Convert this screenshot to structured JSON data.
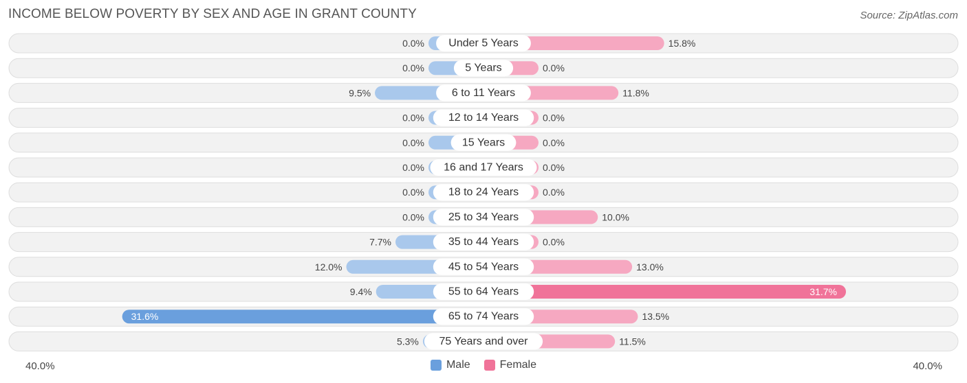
{
  "chart_data": {
    "type": "bar",
    "orientation": "horizontal-diverging",
    "title": "INCOME BELOW POVERTY BY SEX AND AGE IN GRANT COUNTY",
    "source": "Source: ZipAtlas.com",
    "categories": [
      "Under 5 Years",
      "5 Years",
      "6 to 11 Years",
      "12 to 14 Years",
      "15 Years",
      "16 and 17 Years",
      "18 to 24 Years",
      "25 to 34 Years",
      "35 to 44 Years",
      "45 to 54 Years",
      "55 to 64 Years",
      "65 to 74 Years",
      "75 Years and over"
    ],
    "series": [
      {
        "name": "Male",
        "color": "#6a9fdd",
        "values": [
          0.0,
          0.0,
          9.5,
          0.0,
          0.0,
          0.0,
          0.0,
          0.0,
          7.7,
          12.0,
          9.4,
          31.6,
          5.3
        ],
        "labels": [
          "0.0%",
          "0.0%",
          "9.5%",
          "0.0%",
          "0.0%",
          "0.0%",
          "0.0%",
          "0.0%",
          "7.7%",
          "12.0%",
          "9.4%",
          "31.6%",
          "5.3%"
        ]
      },
      {
        "name": "Female",
        "color": "#f07399",
        "values": [
          15.8,
          0.0,
          11.8,
          0.0,
          0.0,
          0.0,
          0.0,
          10.0,
          0.0,
          13.0,
          31.7,
          13.5,
          11.5
        ],
        "labels": [
          "15.8%",
          "0.0%",
          "11.8%",
          "0.0%",
          "0.0%",
          "0.0%",
          "0.0%",
          "10.0%",
          "0.0%",
          "13.0%",
          "31.7%",
          "13.5%",
          "11.5%"
        ]
      }
    ],
    "xlim": [
      -40,
      40
    ],
    "axis_min_label": "40.0%",
    "axis_max_label": "40.0%",
    "legend_position": "bottom-center"
  },
  "colors": {
    "male_light": "#a9c8ec",
    "male_strong": "#6a9fdd",
    "female_light": "#f6a8c1",
    "female_strong": "#f07399",
    "row_bg": "#f2f2f2",
    "row_border": "#dddddd"
  }
}
